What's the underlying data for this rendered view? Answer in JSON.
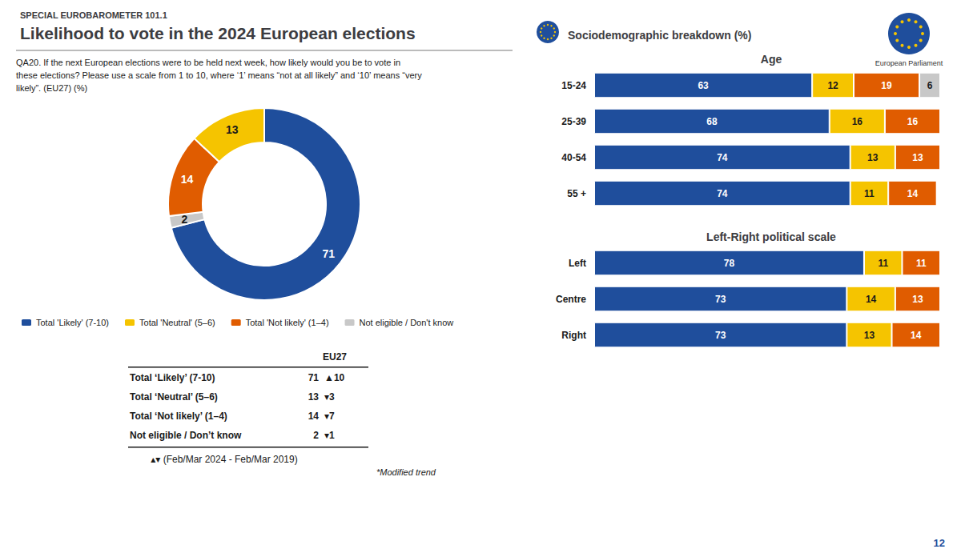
{
  "chart_data": [
    {
      "type": "pie",
      "title": "Likelihood to vote in the 2024 European elections",
      "subtitle": "SPECIAL EUROBAROMETER 101.1",
      "annotations": [
        "QA20. If the next European elections were to be held next week, how likely would you be to vote in\nthese elections? Please use a scale from 1 to 10, where ‘1’ means “not at all likely” and ‘10’ means “very\nlikely”. (EU27) (%)",
        "▴▾ (Feb/Mar 2024 - Feb/Mar 2019)",
        "*Modified trend",
        "European Parliament",
        "12"
      ],
      "categories": [
        "Total 'Likely' (7-10)",
        "Not eligible / Don't know",
        "Total 'Not likely' (1–4)",
        "Total 'Neutral' (5–6)"
      ],
      "values": [
        71,
        2,
        14,
        13
      ],
      "colors": [
        "#1F4E9C",
        "#C8C8C8",
        "#E05C00",
        "#F5C400"
      ],
      "data_labels": true,
      "table": {
        "header": "EU27",
        "rows": [
          [
            "Total ‘Likely’ (7-10)",
            "71",
            "▲10"
          ],
          [
            "Total ‘Neutral’ (5–6)",
            "13",
            "▾3"
          ],
          [
            "Total ‘Not likely’ (1–4)",
            "14",
            "▾7"
          ],
          [
            "Not eligible / Don’t know",
            "2",
            "▾1"
          ]
        ]
      }
    },
    {
      "type": "bar",
      "title": "Age",
      "subtitle": "Sociodemographic breakdown (%)",
      "orientation": "horizontal",
      "stacked": true,
      "data_labels": true,
      "grid": false,
      "tick_labels": "y",
      "legend": "bottom",
      "categories": [
        "15-24",
        "25-39",
        "40-54",
        "55 +"
      ],
      "xlim": [
        0,
        100
      ],
      "xticks": [
        0,
        25,
        50,
        75,
        100
      ],
      "series": [
        {
          "name": "Total 'Likely' (7-10)",
          "color": "#1F4E9C",
          "values": [
            63,
            68,
            74,
            74
          ]
        },
        {
          "name": "Total 'Neutral' (5–6)",
          "color": "#F5C400",
          "values": [
            12,
            16,
            13,
            11
          ]
        },
        {
          "name": "Total 'Not likely' (1–4)",
          "color": "#E05C00",
          "values": [
            19,
            16,
            13,
            14
          ]
        },
        {
          "name": "Not eligible / Don't know",
          "color": "#C8C8C8",
          "values": [
            6,
            0,
            0,
            0
          ]
        }
      ]
    },
    {
      "type": "bar",
      "title": "Left-Right political scale",
      "orientation": "horizontal",
      "stacked": true,
      "data_labels": true,
      "grid": false,
      "tick_labels": "y",
      "categories": [
        "Left",
        "Centre",
        "Right"
      ],
      "xlim": [
        0,
        100
      ],
      "xticks": [
        0,
        25,
        50,
        75,
        100
      ],
      "series": [
        {
          "name": "Total 'Likely' (7-10)",
          "color": "#1F4E9C",
          "values": [
            78,
            73,
            73
          ]
        },
        {
          "name": "Total 'Neutral' (5–6)",
          "color": "#F5C400",
          "values": [
            11,
            14,
            13
          ]
        },
        {
          "name": "Total 'Not likely' (1–4)",
          "color": "#E05C00",
          "values": [
            11,
            13,
            14
          ]
        },
        {
          "name": "Not eligible / Don't know",
          "color": "#C8C8C8",
          "values": [
            0,
            0,
            0
          ]
        }
      ]
    }
  ]
}
